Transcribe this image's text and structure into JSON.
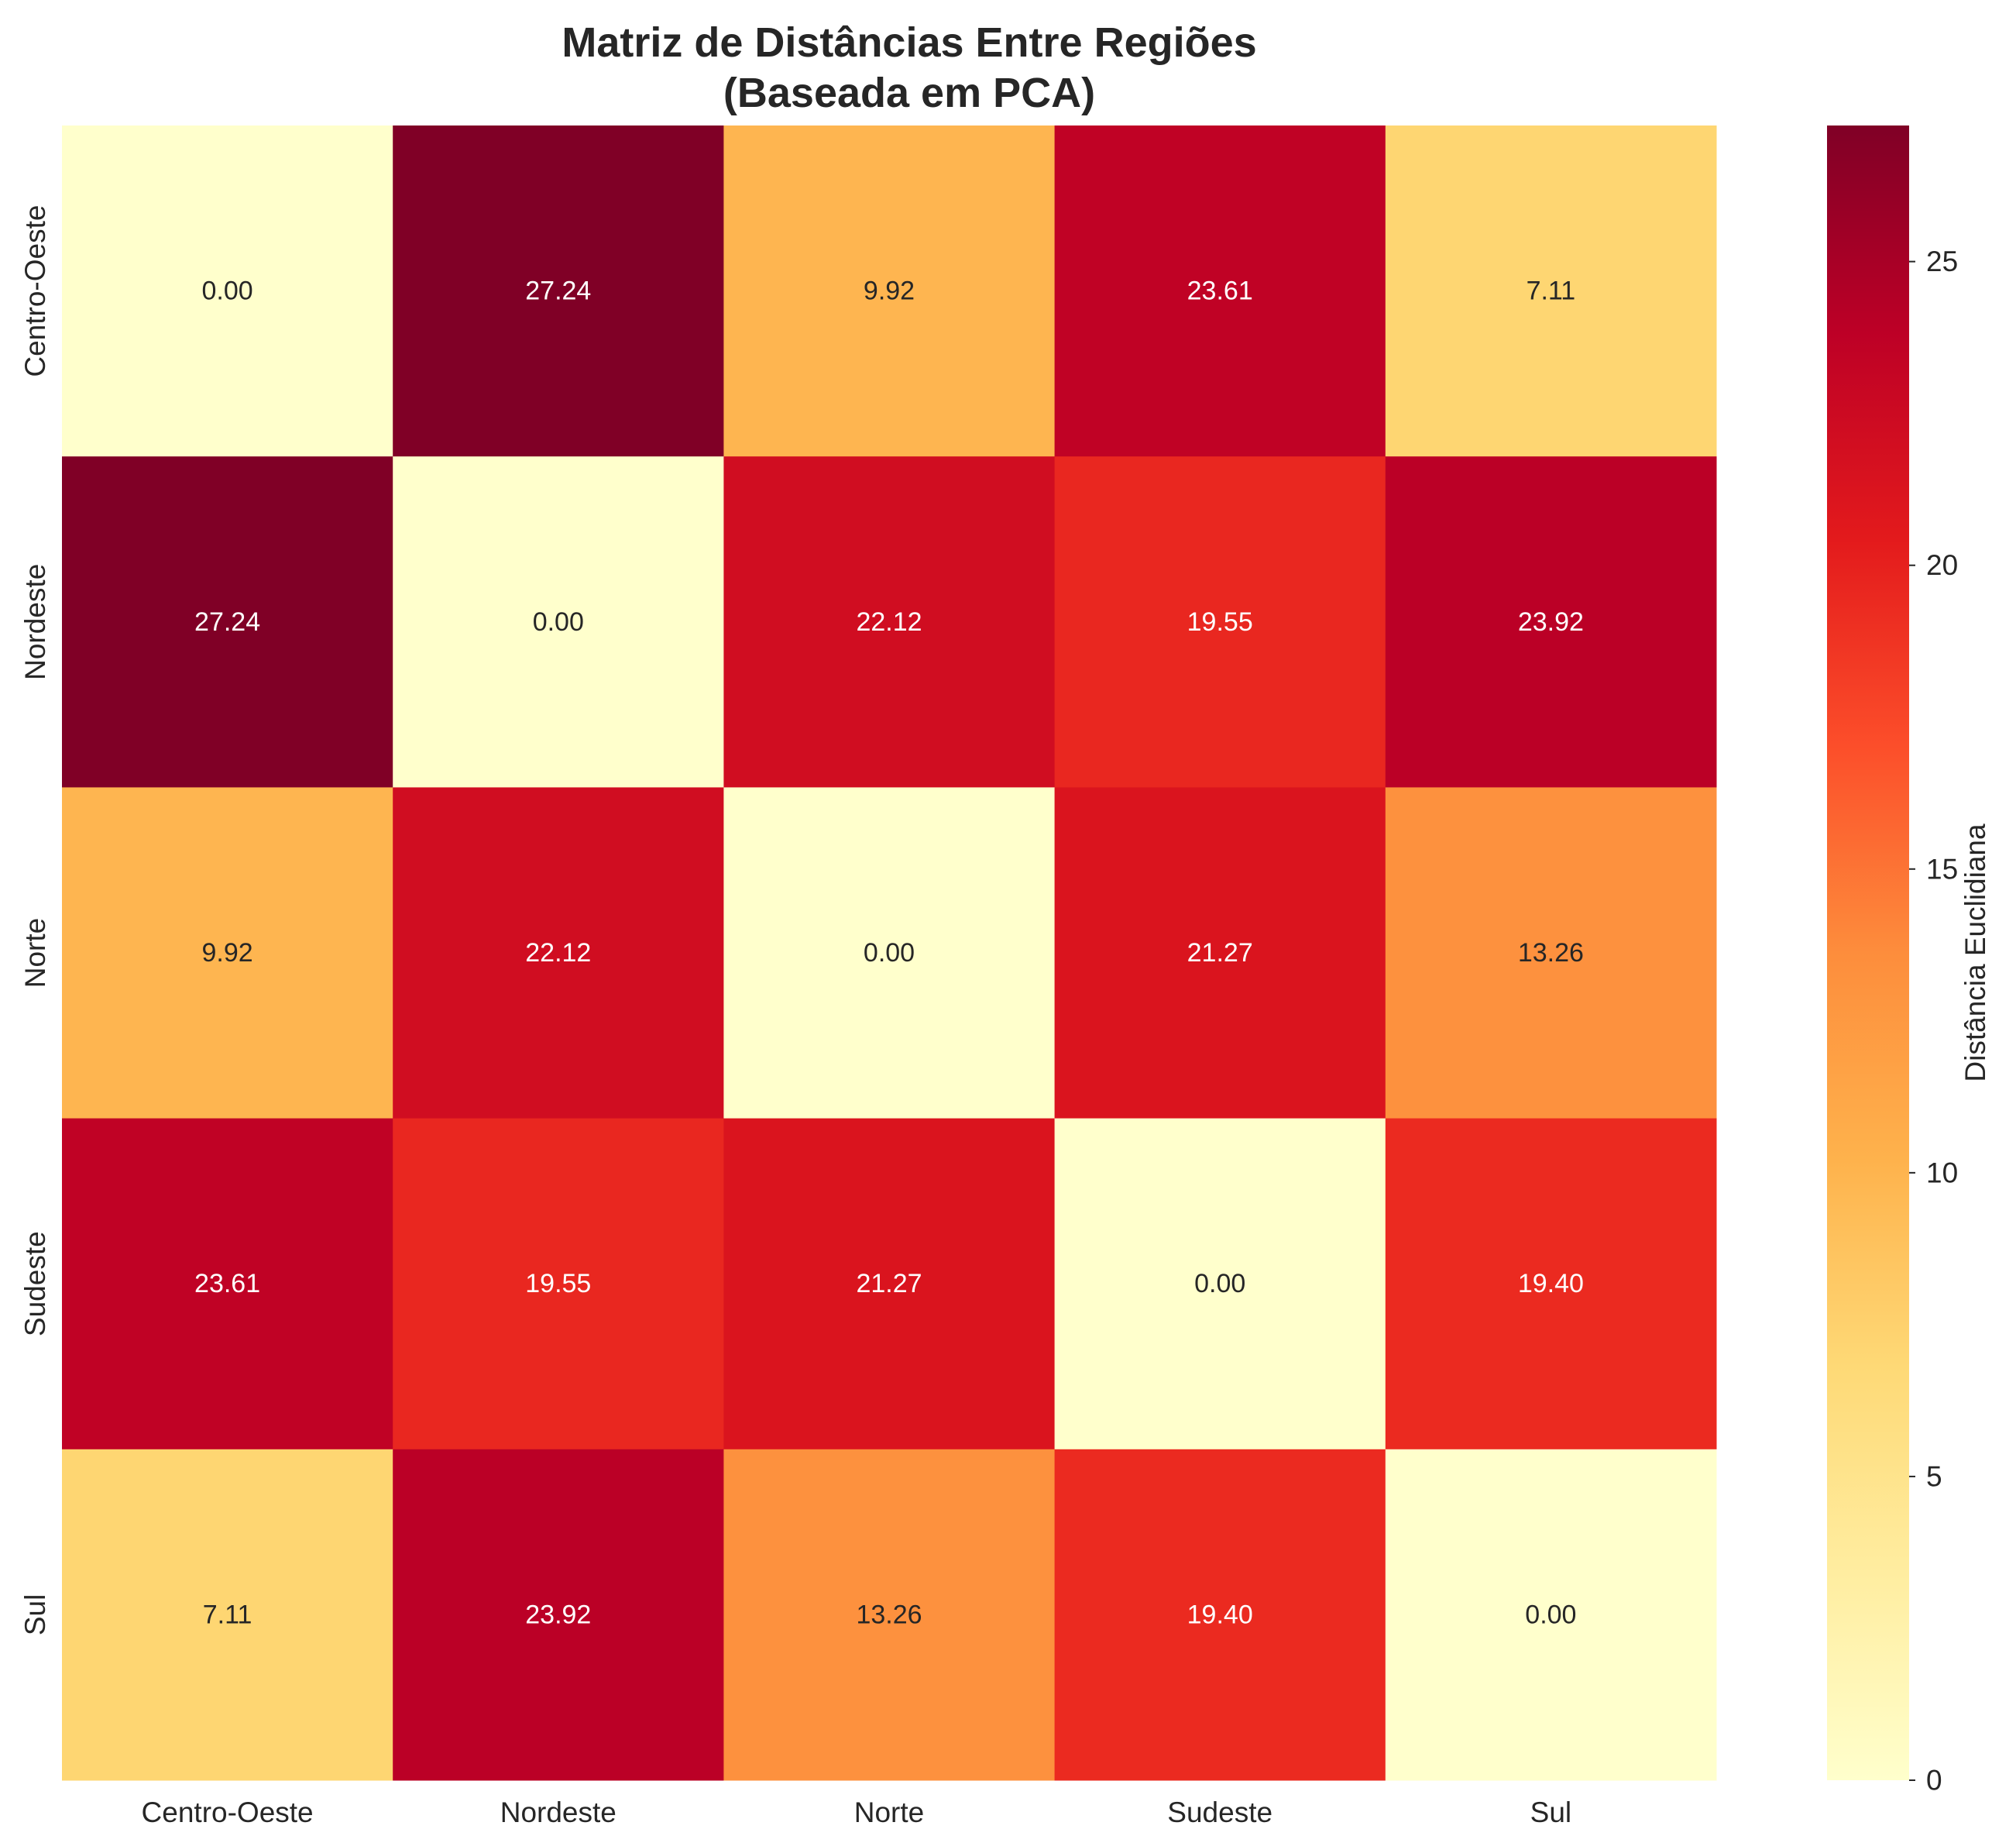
{
  "chart_data": {
    "type": "heatmap",
    "title_lines": [
      "Matriz de Distâncias Entre Regiões",
      "(Baseada em PCA)"
    ],
    "xlabel": "",
    "ylabel": "",
    "x_categories": [
      "Centro-Oeste",
      "Nordeste",
      "Norte",
      "Sudeste",
      "Sul"
    ],
    "y_categories": [
      "Centro-Oeste",
      "Nordeste",
      "Norte",
      "Sudeste",
      "Sul"
    ],
    "values": [
      [
        0.0,
        27.24,
        9.92,
        23.61,
        7.11
      ],
      [
        27.24,
        0.0,
        22.12,
        19.55,
        23.92
      ],
      [
        9.92,
        22.12,
        0.0,
        21.27,
        13.26
      ],
      [
        23.61,
        19.55,
        21.27,
        0.0,
        19.4
      ],
      [
        7.11,
        23.92,
        13.26,
        19.4,
        0.0
      ]
    ],
    "annotation_format": "0.00",
    "colormap": "YlOrRd",
    "colormap_stops": [
      "#ffffcc",
      "#ffeda0",
      "#fed976",
      "#feb24c",
      "#fd8d3c",
      "#fc4e2a",
      "#e31a1c",
      "#bd0026",
      "#800026"
    ],
    "vmin": 0,
    "vmax": 27.24,
    "colorbar": {
      "label": "Distância Euclidiana",
      "ticks": [
        0,
        5,
        10,
        15,
        20,
        25
      ],
      "tick_labels": [
        "0",
        "5",
        "10",
        "15",
        "20",
        "25"
      ],
      "placement": "right"
    },
    "grid": false
  }
}
